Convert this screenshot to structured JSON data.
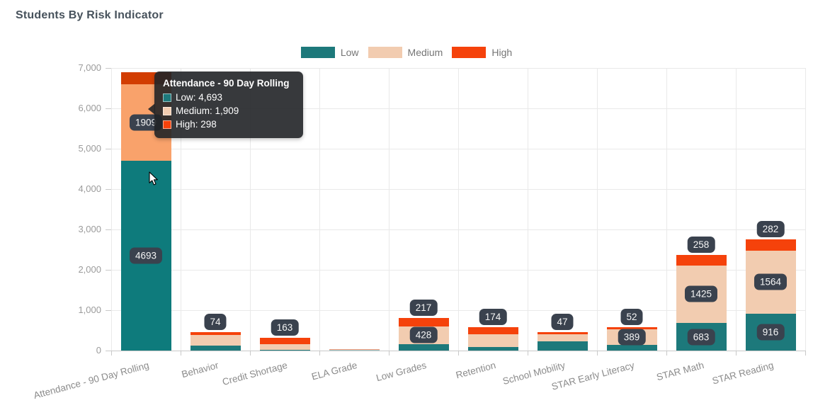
{
  "page": {
    "title": "Students By Risk Indicator"
  },
  "colors": {
    "low": "#1d797b",
    "medium": "#f2ccb0",
    "high": "#f5420b",
    "low_highlight": "#0e7b7c",
    "medium_highlight": "#f9a26b",
    "high_highlight": "#d23d02",
    "label_badge_bg": "#3a424e",
    "axis_text": "#9b9b9b",
    "title_text": "#47525c"
  },
  "legend": {
    "items": [
      {
        "label": "Low",
        "color_key": "low"
      },
      {
        "label": "Medium",
        "color_key": "medium"
      },
      {
        "label": "High",
        "color_key": "high"
      }
    ]
  },
  "chart_data": {
    "type": "bar",
    "stacked": true,
    "title": "Students By Risk Indicator",
    "xlabel": "",
    "ylabel": "",
    "ylim": [
      0,
      7000
    ],
    "ytick_step": 1000,
    "yticks": [
      "0",
      "1,000",
      "2,000",
      "3,000",
      "4,000",
      "5,000",
      "6,000",
      "7,000"
    ],
    "grid": "both",
    "legend_position": "top",
    "highlighted_category_index": 0,
    "categories": [
      "Attendance - 90 Day Rolling",
      "Behavior",
      "Credit Shortage",
      "ELA Grade",
      "Low Grades",
      "Retention",
      "School Mobility",
      "STAR Early Literacy",
      "STAR Math",
      "STAR Reading"
    ],
    "series": [
      {
        "name": "Low",
        "color_key": "low",
        "values": [
          4693,
          130,
          25,
          20,
          165,
          80,
          235,
          145,
          683,
          916
        ],
        "labels": [
          "4693",
          null,
          null,
          null,
          null,
          null,
          null,
          null,
          "683",
          "916"
        ]
      },
      {
        "name": "Medium",
        "color_key": "medium",
        "values": [
          1909,
          260,
          135,
          10,
          428,
          330,
          175,
          389,
          1425,
          1564
        ],
        "labels": [
          "1909",
          null,
          null,
          null,
          "428",
          null,
          null,
          "389",
          "1425",
          "1564"
        ]
      },
      {
        "name": "High",
        "color_key": "high",
        "values": [
          298,
          74,
          163,
          5,
          217,
          174,
          47,
          52,
          258,
          282
        ],
        "labels": [
          null,
          "74",
          "163",
          null,
          "217",
          "174",
          "47",
          "52",
          "258",
          "282"
        ]
      }
    ]
  },
  "tooltip": {
    "title": "Attendance - 90 Day Rolling",
    "rows": [
      {
        "series": "Low",
        "color_key": "low",
        "value": "4,693"
      },
      {
        "series": "Medium",
        "color_key": "medium",
        "value": "1,909"
      },
      {
        "series": "High",
        "color_key": "high",
        "value": "298"
      }
    ]
  }
}
